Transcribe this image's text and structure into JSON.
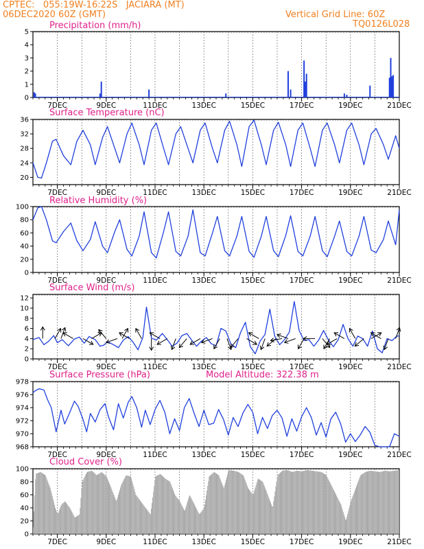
{
  "header": {
    "line1_left": "CPTEC:   055:19W-16:22S   JACIARA (MT)",
    "line2_left": "06DEC2020 60Z (GMT)",
    "line2_right": "Vertical Grid Line: 60Z",
    "line3_right": "TQ0126L028"
  },
  "colors": {
    "header": "#f08020",
    "title": "#e0208a",
    "series": "#1f3fdd",
    "cloud": "#a8a8a8",
    "grid": "#555555"
  },
  "chart_data": [
    {
      "type": "bar",
      "title": "Precipitation (mm/h)",
      "ylim": [
        0,
        5
      ],
      "yticks": [
        0,
        1,
        2,
        3,
        4,
        5
      ],
      "xlim": [
        6.0,
        21.0
      ],
      "xticks": [
        7,
        9,
        11,
        13,
        15,
        17,
        19,
        21
      ],
      "xtick_labels": [
        "7DEC",
        "9DEC",
        "11DEC",
        "13DEC",
        "15DEC",
        "17DEC",
        "19DEC",
        "21DEC"
      ],
      "x": [
        6.05,
        6.1,
        8.75,
        8.8,
        10.75,
        13.9,
        16.45,
        16.55,
        17.1,
        17.15,
        17.2,
        18.75,
        18.85,
        19.8,
        20.6,
        20.65,
        20.7,
        20.75
      ],
      "values": [
        0.4,
        0.3,
        0.3,
        1.2,
        0.6,
        0.3,
        2.0,
        0.6,
        2.8,
        1.2,
        1.8,
        0.3,
        0.2,
        0.9,
        1.5,
        3.0,
        1.6,
        1.7
      ]
    },
    {
      "type": "line",
      "title": "Surface Temperature (nC)",
      "ylim": [
        18,
        36
      ],
      "yticks": [
        20,
        24,
        28,
        32,
        36
      ],
      "xlim": [
        6.0,
        21.0
      ],
      "xticks": [
        7,
        9,
        11,
        13,
        15,
        17,
        19,
        21
      ],
      "xtick_labels": [
        "7DEC",
        "9DEC",
        "11DEC",
        "13DEC",
        "15DEC",
        "17DEC",
        "19DEC",
        "21DEC"
      ],
      "x": [
        6.0,
        6.2,
        6.35,
        6.55,
        6.8,
        6.95,
        7.25,
        7.55,
        7.8,
        8.05,
        8.35,
        8.55,
        8.85,
        9.05,
        9.35,
        9.55,
        9.85,
        10.05,
        10.35,
        10.55,
        10.85,
        11.05,
        11.35,
        11.55,
        11.85,
        12.05,
        12.35,
        12.55,
        12.85,
        13.05,
        13.35,
        13.55,
        13.85,
        14.05,
        14.35,
        14.55,
        14.85,
        15.05,
        15.35,
        15.55,
        15.85,
        16.05,
        16.35,
        16.55,
        16.85,
        17.05,
        17.35,
        17.55,
        17.85,
        18.05,
        18.35,
        18.55,
        18.85,
        19.05,
        19.35,
        19.55,
        19.85,
        20.05,
        20.35,
        20.55,
        20.85,
        21.0
      ],
      "values": [
        24,
        20,
        19.8,
        24,
        30,
        30.5,
        26,
        23.5,
        30,
        33,
        29,
        23.5,
        31,
        34,
        28,
        24,
        32,
        35,
        29,
        23.5,
        33,
        35,
        28,
        23.5,
        32,
        34,
        28,
        24,
        33,
        35,
        28,
        24,
        33,
        35.5,
        29,
        23,
        34,
        35.8,
        29,
        23.5,
        33,
        35.2,
        29,
        23,
        33,
        35,
        28,
        23,
        33,
        35,
        29,
        24,
        33,
        35,
        29,
        23.5,
        32,
        33.5,
        29,
        25,
        31.5,
        28
      ]
    },
    {
      "type": "line",
      "title": "Relative Humidity (%)",
      "ylim": [
        0,
        100
      ],
      "yticks": [
        0,
        20,
        40,
        60,
        80,
        100
      ],
      "xlim": [
        6.0,
        21.0
      ],
      "xticks": [
        7,
        9,
        11,
        13,
        15,
        17,
        19,
        21
      ],
      "xtick_labels": [
        "7DEC",
        "9DEC",
        "11DEC",
        "13DEC",
        "15DEC",
        "17DEC",
        "19DEC",
        "21DEC"
      ],
      "x": [
        6.0,
        6.2,
        6.35,
        6.55,
        6.8,
        6.95,
        7.25,
        7.55,
        7.8,
        8.05,
        8.35,
        8.55,
        8.85,
        9.05,
        9.35,
        9.55,
        9.85,
        10.05,
        10.35,
        10.55,
        10.85,
        11.05,
        11.35,
        11.55,
        11.85,
        12.05,
        12.35,
        12.55,
        12.85,
        13.05,
        13.35,
        13.55,
        13.85,
        14.05,
        14.35,
        14.55,
        14.85,
        15.05,
        15.35,
        15.55,
        15.85,
        16.05,
        16.35,
        16.55,
        16.85,
        17.05,
        17.35,
        17.55,
        17.85,
        18.05,
        18.35,
        18.55,
        18.85,
        19.05,
        19.35,
        19.55,
        19.85,
        20.05,
        20.35,
        20.55,
        20.85,
        21.0
      ],
      "values": [
        80,
        98,
        100,
        80,
        48,
        45,
        62,
        75,
        48,
        33,
        50,
        77,
        40,
        30,
        62,
        80,
        35,
        25,
        55,
        92,
        30,
        22,
        62,
        92,
        32,
        25,
        55,
        95,
        30,
        25,
        60,
        85,
        33,
        25,
        55,
        85,
        32,
        23,
        55,
        85,
        33,
        24,
        56,
        86,
        32,
        25,
        55,
        85,
        33,
        24,
        55,
        78,
        32,
        25,
        55,
        85,
        34,
        30,
        50,
        78,
        42,
        95
      ]
    },
    {
      "type": "line",
      "title": "Surface Wind (m/s)",
      "ylim": [
        0,
        12.7
      ],
      "yticks": [
        0,
        2,
        4,
        6,
        8,
        10,
        12
      ],
      "xlim": [
        6.0,
        21.0
      ],
      "xticks": [
        7,
        9,
        11,
        13,
        15,
        17,
        19,
        21
      ],
      "xtick_labels": [
        "7DEC",
        "9DEC",
        "11DEC",
        "13DEC",
        "15DEC",
        "17DEC",
        "19DEC",
        "21DEC"
      ],
      "x": [
        6.0,
        6.25,
        6.45,
        6.65,
        6.85,
        7.0,
        7.2,
        7.45,
        7.7,
        7.9,
        8.1,
        8.3,
        8.55,
        8.75,
        8.9,
        9.05,
        9.3,
        9.5,
        9.7,
        9.9,
        10.1,
        10.3,
        10.5,
        10.65,
        10.85,
        11.05,
        11.3,
        11.5,
        11.7,
        11.9,
        12.1,
        12.3,
        12.5,
        12.7,
        12.9,
        13.1,
        13.3,
        13.5,
        13.7,
        13.9,
        14.1,
        14.3,
        14.5,
        14.7,
        14.9,
        15.1,
        15.3,
        15.5,
        15.7,
        15.9,
        16.1,
        16.3,
        16.5,
        16.7,
        16.9,
        17.1,
        17.3,
        17.5,
        17.7,
        17.9,
        18.1,
        18.3,
        18.5,
        18.7,
        18.9,
        19.1,
        19.3,
        19.5,
        19.7,
        19.9,
        20.1,
        20.3,
        20.5,
        20.7,
        20.9,
        21.0
      ],
      "values": [
        3.8,
        4.2,
        2.8,
        3.5,
        4.6,
        3.2,
        3.8,
        2.6,
        3.9,
        4.3,
        3.1,
        4.4,
        3.8,
        2.5,
        2.7,
        3.4,
        2.8,
        2.2,
        3.7,
        4.4,
        3.3,
        1.8,
        4.2,
        10.2,
        4.1,
        3.7,
        5.0,
        3.8,
        2.5,
        3.1,
        4.6,
        5.0,
        3.7,
        2.5,
        3.5,
        4.2,
        3.0,
        2.6,
        6.0,
        5.5,
        3.0,
        2.2,
        5.2,
        7.2,
        2.4,
        1.0,
        3.5,
        4.8,
        9.8,
        4.5,
        2.8,
        3.8,
        5.3,
        11.3,
        5.6,
        3.6,
        3.8,
        2.5,
        3.7,
        5.6,
        3.7,
        2.4,
        3.8,
        6.8,
        4.0,
        2.5,
        4.5,
        4.0,
        2.5,
        5.5,
        2.0,
        1.2,
        4.0,
        3.6,
        4.5,
        4.5
      ],
      "barb_x": [
        6.4,
        6.9,
        7.15,
        7.65,
        8.05,
        8.4,
        9.0,
        9.45,
        9.65,
        9.95,
        10.45,
        10.85,
        11.2,
        11.5,
        11.85,
        12.3,
        12.85,
        13.35,
        13.65,
        13.95,
        14.4,
        14.75,
        15.25,
        15.5,
        15.95,
        16.2,
        16.45,
        16.75,
        17.1,
        17.55,
        17.85,
        18.15,
        18.45,
        18.75,
        19.2,
        19.55,
        19.85,
        20.25,
        20.55,
        20.85
      ],
      "barb_dir": [
        0,
        30,
        20,
        300,
        120,
        60,
        320,
        250,
        30,
        300,
        330,
        180,
        300,
        240,
        200,
        220,
        240,
        250,
        210,
        160,
        220,
        120,
        300,
        200,
        230,
        260,
        290,
        250,
        210,
        270,
        140,
        210,
        240,
        300,
        330,
        230,
        60,
        300,
        200,
        20
      ]
    },
    {
      "type": "line",
      "title": "Surface Pressure (hPa)",
      "annotation": "Model Altitude: 322.38 m",
      "ylim": [
        968,
        978
      ],
      "yticks": [
        968,
        970,
        972,
        974,
        976,
        978
      ],
      "xlim": [
        6.0,
        21.0
      ],
      "xticks": [
        7,
        9,
        11,
        13,
        15,
        17,
        19,
        21
      ],
      "xtick_labels": [
        "7DEC",
        "9DEC",
        "11DEC",
        "13DEC",
        "15DEC",
        "17DEC",
        "19DEC",
        "21DEC"
      ],
      "x": [
        6.0,
        6.1,
        6.25,
        6.45,
        6.6,
        6.75,
        6.95,
        7.15,
        7.3,
        7.5,
        7.7,
        7.85,
        8.05,
        8.2,
        8.35,
        8.55,
        8.75,
        8.95,
        9.1,
        9.3,
        9.5,
        9.7,
        9.9,
        10.05,
        10.25,
        10.45,
        10.6,
        10.8,
        11.0,
        11.2,
        11.4,
        11.6,
        11.8,
        12.0,
        12.2,
        12.4,
        12.6,
        12.8,
        13.0,
        13.2,
        13.4,
        13.6,
        13.8,
        14.0,
        14.2,
        14.4,
        14.6,
        14.8,
        15.0,
        15.2,
        15.4,
        15.6,
        15.8,
        16.0,
        16.2,
        16.4,
        16.6,
        16.8,
        17.0,
        17.2,
        17.4,
        17.6,
        17.8,
        18.0,
        18.2,
        18.4,
        18.6,
        18.8,
        19.0,
        19.2,
        19.4,
        19.6,
        19.8,
        20.0,
        20.2,
        20.4,
        20.6,
        20.8,
        21.0
      ],
      "values": [
        976.3,
        976.6,
        976.9,
        976.7,
        975.2,
        974.0,
        970.3,
        973.6,
        971.5,
        973.2,
        975.0,
        974.2,
        972.2,
        970.3,
        973.1,
        971.8,
        973.7,
        974.6,
        972.5,
        970.6,
        974.6,
        972.4,
        974.8,
        975.7,
        974.0,
        971.0,
        973.6,
        971.4,
        973.7,
        975.1,
        973.3,
        970.0,
        972.3,
        970.5,
        974.0,
        975.4,
        973.1,
        971.1,
        973.6,
        971.4,
        971.6,
        973.7,
        972.2,
        969.8,
        972.5,
        971.1,
        973.2,
        974.5,
        973.3,
        970.0,
        972.5,
        970.8,
        972.8,
        973.6,
        972.4,
        969.6,
        972.3,
        970.4,
        972.6,
        974.0,
        972.5,
        969.8,
        971.7,
        969.5,
        972.3,
        973.3,
        971.5,
        968.7,
        970.0,
        968.8,
        969.8,
        971.1,
        970.2,
        968.2,
        968.0,
        968.0,
        968.0,
        970.0,
        969.6
      ]
    },
    {
      "type": "area",
      "title": "Cloud Cover (%)",
      "ylim": [
        0,
        100
      ],
      "yticks": [
        0,
        20,
        40,
        60,
        80,
        100
      ],
      "xlim": [
        6.0,
        21.0
      ],
      "xticks": [
        7,
        9,
        11,
        13,
        15,
        17,
        19,
        21
      ],
      "xtick_labels": [
        "7DEC",
        "9DEC",
        "11DEC",
        "13DEC",
        "15DEC",
        "17DEC",
        "19DEC",
        "21DEC"
      ],
      "x": [
        6.0,
        6.1,
        6.3,
        6.5,
        6.7,
        6.9,
        7.0,
        7.15,
        7.3,
        7.5,
        7.7,
        7.9,
        8.0,
        8.2,
        8.4,
        8.6,
        8.8,
        9.0,
        9.2,
        9.4,
        9.6,
        9.8,
        10.0,
        10.2,
        10.4,
        10.6,
        10.8,
        11.0,
        11.2,
        11.4,
        11.6,
        11.8,
        12.0,
        12.2,
        12.4,
        12.6,
        12.8,
        13.0,
        13.2,
        13.4,
        13.6,
        13.8,
        14.0,
        14.2,
        14.4,
        14.6,
        14.8,
        15.0,
        15.2,
        15.4,
        15.6,
        15.8,
        16.0,
        16.2,
        16.4,
        16.6,
        16.8,
        17.0,
        17.2,
        17.4,
        17.6,
        17.8,
        18.0,
        18.2,
        18.4,
        18.6,
        18.8,
        19.0,
        19.2,
        19.4,
        19.6,
        19.8,
        20.0,
        20.2,
        20.4,
        20.6,
        20.8,
        21.0
      ],
      "values": [
        10,
        92,
        95,
        90,
        70,
        40,
        30,
        45,
        50,
        40,
        25,
        30,
        80,
        95,
        97,
        90,
        95,
        88,
        70,
        50,
        75,
        90,
        88,
        60,
        50,
        40,
        30,
        88,
        92,
        85,
        80,
        60,
        50,
        35,
        60,
        45,
        30,
        40,
        88,
        95,
        90,
        70,
        98,
        97,
        95,
        90,
        70,
        60,
        85,
        80,
        60,
        40,
        90,
        97,
        98,
        95,
        97,
        96,
        98,
        97,
        96,
        95,
        90,
        75,
        60,
        45,
        20,
        50,
        70,
        90,
        95,
        97,
        96,
        95,
        97,
        96,
        97,
        98
      ]
    }
  ]
}
